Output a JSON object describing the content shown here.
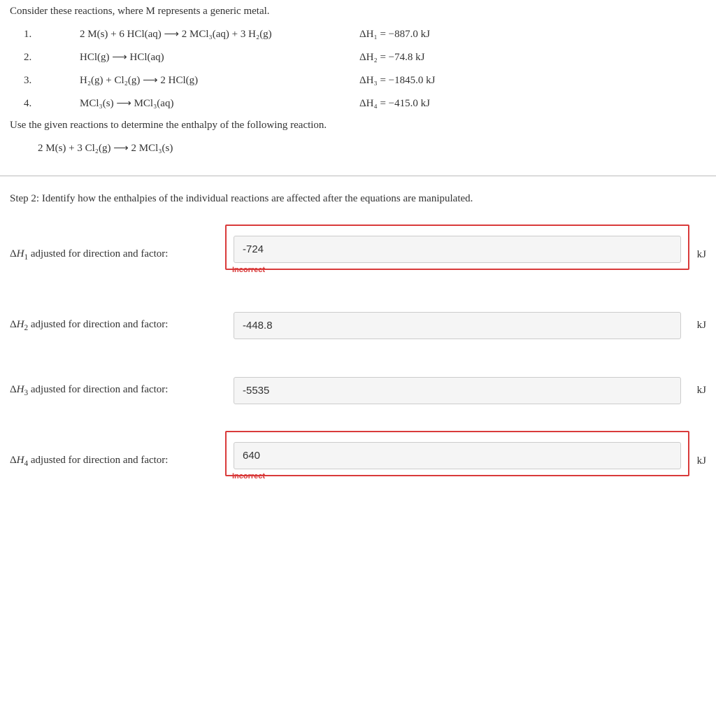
{
  "intro": "Consider these reactions, where M represents a generic metal.",
  "reactions": [
    {
      "num": "1.",
      "eq": "2 M(s) + 6 HCl(aq) ⟶ 2 MCl₃(aq) + 3 H₂(g)",
      "dh_label": "ΔH₁ = −887.0 kJ"
    },
    {
      "num": "2.",
      "eq": "HCl(g) ⟶ HCl(aq)",
      "dh_label": "ΔH₂ = −74.8 kJ"
    },
    {
      "num": "3.",
      "eq": "H₂(g) + Cl₂(g) ⟶ 2 HCl(g)",
      "dh_label": "ΔH₃ = −1845.0 kJ"
    },
    {
      "num": "4.",
      "eq": "MCl₃(s) ⟶ MCl₃(aq)",
      "dh_label": "ΔH₄ = −415.0 kJ"
    }
  ],
  "use_line": "Use the given reactions to determine the enthalpy of the following reaction.",
  "target_eq": "2 M(s) + 3 Cl₂(g) ⟶ 2 MCl₃(s)",
  "step_title": "Step 2: Identify how the enthalpies of the individual reactions are affected after the equations are manipulated.",
  "answers": [
    {
      "label_html": "Δ<span class='ital'>H</span><sub>1</sub> adjusted for direction and factor:",
      "value": "-724",
      "unit": "kJ",
      "incorrect": true
    },
    {
      "label_html": "Δ<span class='ital'>H</span><sub>2</sub> adjusted for direction and factor:",
      "value": "-448.8",
      "unit": "kJ",
      "incorrect": false
    },
    {
      "label_html": "Δ<span class='ital'>H</span><sub>3</sub> adjusted for direction and factor:",
      "value": "-5535",
      "unit": "kJ",
      "incorrect": false
    },
    {
      "label_html": "Δ<span class='ital'>H</span><sub>4</sub> adjusted for direction and factor:",
      "value": "640",
      "unit": "kJ",
      "incorrect": true
    }
  ],
  "incorrect_text": "Incorrect"
}
